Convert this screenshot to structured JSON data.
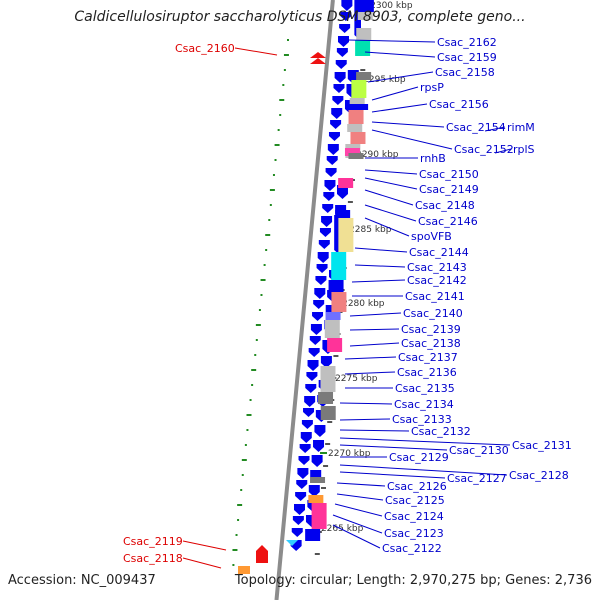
{
  "header": {
    "title": "Caldicellulosiruptor saccharolyticus DSM 8903, complete geno..."
  },
  "footer": {
    "accession": "Accession: NC_009437",
    "summary": "Topology: circular; Length: 2,970,275 bp; Genes: 2,736"
  },
  "colors": {
    "backbone": "#8c8c8c",
    "forward_gene": "#0000ee",
    "highlight_gene": "#ee1111",
    "gene_label": "#0000cc",
    "highlight_label": "#dd0000",
    "tick_dot": "#228b22",
    "cds_feature": "#7a7a7a"
  },
  "kbp_ticks": [
    "2300 kbp",
    "2295 kbp",
    "2290 kbp",
    "2285 kbp",
    "2280 kbp",
    "2275 kbp",
    "2270 kbp",
    "2265 kbp"
  ],
  "gene_labels": [
    {
      "text": "Csac_2162",
      "highlight": false
    },
    {
      "text": "Csac_2160",
      "highlight": true
    },
    {
      "text": "Csac_2159",
      "highlight": false
    },
    {
      "text": "Csac_2158",
      "highlight": false
    },
    {
      "text": "rpsP",
      "highlight": false
    },
    {
      "text": "Csac_2156",
      "highlight": false
    },
    {
      "text": "Csac_2154",
      "highlight": false
    },
    {
      "text": "rimM",
      "highlight": false
    },
    {
      "text": "Csac_2152",
      "highlight": false
    },
    {
      "text": "rplS",
      "highlight": false
    },
    {
      "text": "rnhB",
      "highlight": false
    },
    {
      "text": "Csac_2150",
      "highlight": false
    },
    {
      "text": "Csac_2149",
      "highlight": false
    },
    {
      "text": "Csac_2148",
      "highlight": false
    },
    {
      "text": "Csac_2146",
      "highlight": false
    },
    {
      "text": "spoVFB",
      "highlight": false
    },
    {
      "text": "Csac_2144",
      "highlight": false
    },
    {
      "text": "Csac_2143",
      "highlight": false
    },
    {
      "text": "Csac_2142",
      "highlight": false
    },
    {
      "text": "Csac_2141",
      "highlight": false
    },
    {
      "text": "Csac_2140",
      "highlight": false
    },
    {
      "text": "Csac_2139",
      "highlight": false
    },
    {
      "text": "Csac_2138",
      "highlight": false
    },
    {
      "text": "Csac_2137",
      "highlight": false
    },
    {
      "text": "Csac_2136",
      "highlight": false
    },
    {
      "text": "Csac_2135",
      "highlight": false
    },
    {
      "text": "Csac_2134",
      "highlight": false
    },
    {
      "text": "Csac_2133",
      "highlight": false
    },
    {
      "text": "Csac_2132",
      "highlight": false
    },
    {
      "text": "Csac_2131",
      "highlight": false
    },
    {
      "text": "Csac_2130",
      "highlight": false
    },
    {
      "text": "Csac_2129",
      "highlight": false
    },
    {
      "text": "Csac_2128",
      "highlight": false
    },
    {
      "text": "Csac_2127",
      "highlight": false
    },
    {
      "text": "Csac_2126",
      "highlight": false
    },
    {
      "text": "Csac_2125",
      "highlight": false
    },
    {
      "text": "Csac_2124",
      "highlight": false
    },
    {
      "text": "Csac_2123",
      "highlight": false
    },
    {
      "text": "Csac_2122",
      "highlight": false
    },
    {
      "text": "Csac_2119",
      "highlight": true
    },
    {
      "text": "Csac_2118",
      "highlight": true
    }
  ]
}
